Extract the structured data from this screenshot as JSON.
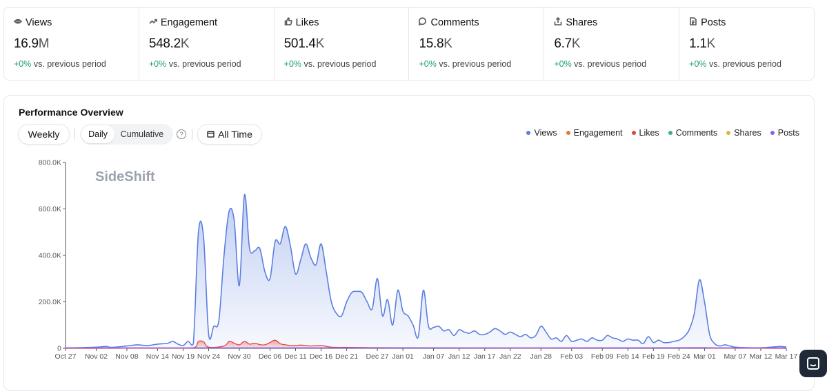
{
  "stats": [
    {
      "key": "views",
      "icon": "eye-icon",
      "label": "Views",
      "value": "16.9",
      "unit": "M",
      "delta": "+0%",
      "delta_text": "vs. previous period"
    },
    {
      "key": "engagement",
      "icon": "trending-up-icon",
      "label": "Engagement",
      "value": "548.2",
      "unit": "K",
      "delta": "+0%",
      "delta_text": "vs. previous period"
    },
    {
      "key": "likes",
      "icon": "thumbs-up-icon",
      "label": "Likes",
      "value": "501.4",
      "unit": "K",
      "delta": "+0%",
      "delta_text": "vs. previous period"
    },
    {
      "key": "comments",
      "icon": "comment-icon",
      "label": "Comments",
      "value": "15.8",
      "unit": "K",
      "delta": "+0%",
      "delta_text": "vs. previous period"
    },
    {
      "key": "shares",
      "icon": "share-icon",
      "label": "Shares",
      "value": "6.7",
      "unit": "K",
      "delta": "+0%",
      "delta_text": "vs. previous period"
    },
    {
      "key": "posts",
      "icon": "document-icon",
      "label": "Posts",
      "value": "1.1",
      "unit": "K",
      "delta": "+0%",
      "delta_text": "vs. previous period"
    }
  ],
  "panel": {
    "title": "Performance Overview",
    "weekly_label": "Weekly",
    "daily_label": "Daily",
    "cumulative_label": "Cumulative",
    "help_glyph": "?",
    "range_label": "All Time"
  },
  "colors": {
    "views": "#5b7fe0",
    "engagement": "#e07a3a",
    "likes": "#e0453a",
    "comments": "#3fb17a",
    "shares": "#e0b43a",
    "posts": "#8b5cf6"
  },
  "legend": [
    {
      "name": "Views",
      "color": "#5b7fe0"
    },
    {
      "name": "Engagement",
      "color": "#e07a3a"
    },
    {
      "name": "Likes",
      "color": "#e0453a"
    },
    {
      "name": "Comments",
      "color": "#3fb17a"
    },
    {
      "name": "Shares",
      "color": "#e0b43a"
    },
    {
      "name": "Posts",
      "color": "#8b5cf6"
    }
  ],
  "chart_data": {
    "type": "area",
    "watermark": "SideShift",
    "ylim": [
      0,
      800000
    ],
    "y_ticks": [
      {
        "v": 0,
        "label": "0"
      },
      {
        "v": 200000,
        "label": "200.0K"
      },
      {
        "v": 400000,
        "label": "400.0K"
      },
      {
        "v": 600000,
        "label": "600.0K"
      },
      {
        "v": 800000,
        "label": "800.0K"
      }
    ],
    "x_range": [
      0,
      141
    ],
    "x_ticks": [
      {
        "d": 0,
        "label": "Oct 27"
      },
      {
        "d": 6,
        "label": "Nov 02"
      },
      {
        "d": 12,
        "label": "Nov 08"
      },
      {
        "d": 18,
        "label": "Nov 14"
      },
      {
        "d": 23,
        "label": "Nov 19"
      },
      {
        "d": 28,
        "label": "Nov 24"
      },
      {
        "d": 34,
        "label": "Nov 30"
      },
      {
        "d": 40,
        "label": "Dec 06"
      },
      {
        "d": 45,
        "label": "Dec 11"
      },
      {
        "d": 50,
        "label": "Dec 16"
      },
      {
        "d": 55,
        "label": "Dec 21"
      },
      {
        "d": 61,
        "label": "Dec 27"
      },
      {
        "d": 66,
        "label": "Jan 01"
      },
      {
        "d": 72,
        "label": "Jan 07"
      },
      {
        "d": 77,
        "label": "Jan 12"
      },
      {
        "d": 82,
        "label": "Jan 17"
      },
      {
        "d": 87,
        "label": "Jan 22"
      },
      {
        "d": 93,
        "label": "Jan 28"
      },
      {
        "d": 99,
        "label": "Feb 03"
      },
      {
        "d": 105,
        "label": "Feb 09"
      },
      {
        "d": 110,
        "label": "Feb 14"
      },
      {
        "d": 115,
        "label": "Feb 19"
      },
      {
        "d": 120,
        "label": "Feb 24"
      },
      {
        "d": 125,
        "label": "Mar 01"
      },
      {
        "d": 131,
        "label": "Mar 07"
      },
      {
        "d": 136,
        "label": "Mar 12"
      },
      {
        "d": 141,
        "label": "Mar 17"
      }
    ],
    "series": [
      {
        "name": "Views",
        "color": "#5b7fe0",
        "points": [
          [
            0,
            2000
          ],
          [
            3,
            3000
          ],
          [
            6,
            5000
          ],
          [
            8,
            8000
          ],
          [
            9,
            4000
          ],
          [
            12,
            10000
          ],
          [
            14,
            15000
          ],
          [
            16,
            12000
          ],
          [
            18,
            18000
          ],
          [
            20,
            22000
          ],
          [
            21,
            30000
          ],
          [
            22,
            18000
          ],
          [
            23,
            12000
          ],
          [
            24,
            30000
          ],
          [
            25,
            20000
          ],
          [
            26,
            500000
          ],
          [
            27,
            480000
          ],
          [
            28,
            60000
          ],
          [
            29,
            95000
          ],
          [
            30,
            120000
          ],
          [
            31,
            400000
          ],
          [
            32,
            590000
          ],
          [
            33,
            550000
          ],
          [
            34,
            270000
          ],
          [
            35,
            660000
          ],
          [
            36,
            430000
          ],
          [
            37,
            420000
          ],
          [
            38,
            430000
          ],
          [
            39,
            330000
          ],
          [
            40,
            300000
          ],
          [
            41,
            460000
          ],
          [
            42,
            450000
          ],
          [
            43,
            525000
          ],
          [
            44,
            440000
          ],
          [
            45,
            320000
          ],
          [
            46,
            380000
          ],
          [
            47,
            450000
          ],
          [
            48,
            390000
          ],
          [
            49,
            360000
          ],
          [
            50,
            450000
          ],
          [
            51,
            330000
          ],
          [
            52,
            200000
          ],
          [
            53,
            150000
          ],
          [
            54,
            140000
          ],
          [
            55,
            200000
          ],
          [
            56,
            240000
          ],
          [
            57,
            245000
          ],
          [
            58,
            240000
          ],
          [
            59,
            200000
          ],
          [
            60,
            170000
          ],
          [
            61,
            300000
          ],
          [
            62,
            140000
          ],
          [
            63,
            210000
          ],
          [
            64,
            100000
          ],
          [
            65,
            250000
          ],
          [
            66,
            160000
          ],
          [
            67,
            140000
          ],
          [
            68,
            100000
          ],
          [
            69,
            50000
          ],
          [
            70,
            250000
          ],
          [
            71,
            95000
          ],
          [
            72,
            90000
          ],
          [
            73,
            95000
          ],
          [
            74,
            75000
          ],
          [
            75,
            80000
          ],
          [
            76,
            55000
          ],
          [
            77,
            80000
          ],
          [
            78,
            70000
          ],
          [
            79,
            65000
          ],
          [
            80,
            75000
          ],
          [
            81,
            60000
          ],
          [
            82,
            60000
          ],
          [
            83,
            70000
          ],
          [
            84,
            85000
          ],
          [
            85,
            75000
          ],
          [
            86,
            60000
          ],
          [
            87,
            70000
          ],
          [
            88,
            60000
          ],
          [
            89,
            50000
          ],
          [
            90,
            60000
          ],
          [
            91,
            45000
          ],
          [
            92,
            55000
          ],
          [
            93,
            95000
          ],
          [
            94,
            70000
          ],
          [
            95,
            40000
          ],
          [
            96,
            45000
          ],
          [
            97,
            30000
          ],
          [
            98,
            55000
          ],
          [
            99,
            30000
          ],
          [
            100,
            35000
          ],
          [
            101,
            40000
          ],
          [
            102,
            30000
          ],
          [
            103,
            45000
          ],
          [
            104,
            35000
          ],
          [
            105,
            35000
          ],
          [
            106,
            55000
          ],
          [
            107,
            45000
          ],
          [
            108,
            40000
          ],
          [
            109,
            30000
          ],
          [
            110,
            40000
          ],
          [
            111,
            35000
          ],
          [
            112,
            35000
          ],
          [
            113,
            20000
          ],
          [
            114,
            50000
          ],
          [
            115,
            25000
          ],
          [
            116,
            35000
          ],
          [
            117,
            25000
          ],
          [
            118,
            25000
          ],
          [
            119,
            30000
          ],
          [
            120,
            35000
          ],
          [
            121,
            50000
          ],
          [
            122,
            80000
          ],
          [
            123,
            150000
          ],
          [
            124,
            295000
          ],
          [
            125,
            200000
          ],
          [
            126,
            60000
          ],
          [
            127,
            20000
          ],
          [
            128,
            10000
          ],
          [
            129,
            15000
          ],
          [
            130,
            10000
          ],
          [
            131,
            5000
          ],
          [
            133,
            3000
          ],
          [
            136,
            2000
          ],
          [
            138,
            5000
          ],
          [
            140,
            8000
          ],
          [
            141,
            5000
          ]
        ]
      },
      {
        "name": "Likes",
        "color": "#e0453a",
        "points": [
          [
            0,
            0
          ],
          [
            20,
            1000
          ],
          [
            25,
            2000
          ],
          [
            26,
            30000
          ],
          [
            27,
            28000
          ],
          [
            28,
            5000
          ],
          [
            31,
            10000
          ],
          [
            32,
            30000
          ],
          [
            33,
            22000
          ],
          [
            34,
            15000
          ],
          [
            35,
            30000
          ],
          [
            36,
            18000
          ],
          [
            37,
            22000
          ],
          [
            38,
            16000
          ],
          [
            39,
            15000
          ],
          [
            40,
            25000
          ],
          [
            41,
            35000
          ],
          [
            42,
            20000
          ],
          [
            43,
            15000
          ],
          [
            44,
            12000
          ],
          [
            45,
            12000
          ],
          [
            46,
            14000
          ],
          [
            47,
            12000
          ],
          [
            48,
            10000
          ],
          [
            50,
            12000
          ],
          [
            52,
            5000
          ],
          [
            55,
            4000
          ],
          [
            60,
            3000
          ],
          [
            70,
            2000
          ],
          [
            90,
            1000
          ],
          [
            124,
            3000
          ],
          [
            126,
            1000
          ],
          [
            141,
            0
          ]
        ]
      },
      {
        "name": "Posts",
        "color": "#8b5cf6",
        "points": [
          [
            0,
            2000
          ],
          [
            141,
            2000
          ]
        ]
      }
    ]
  }
}
